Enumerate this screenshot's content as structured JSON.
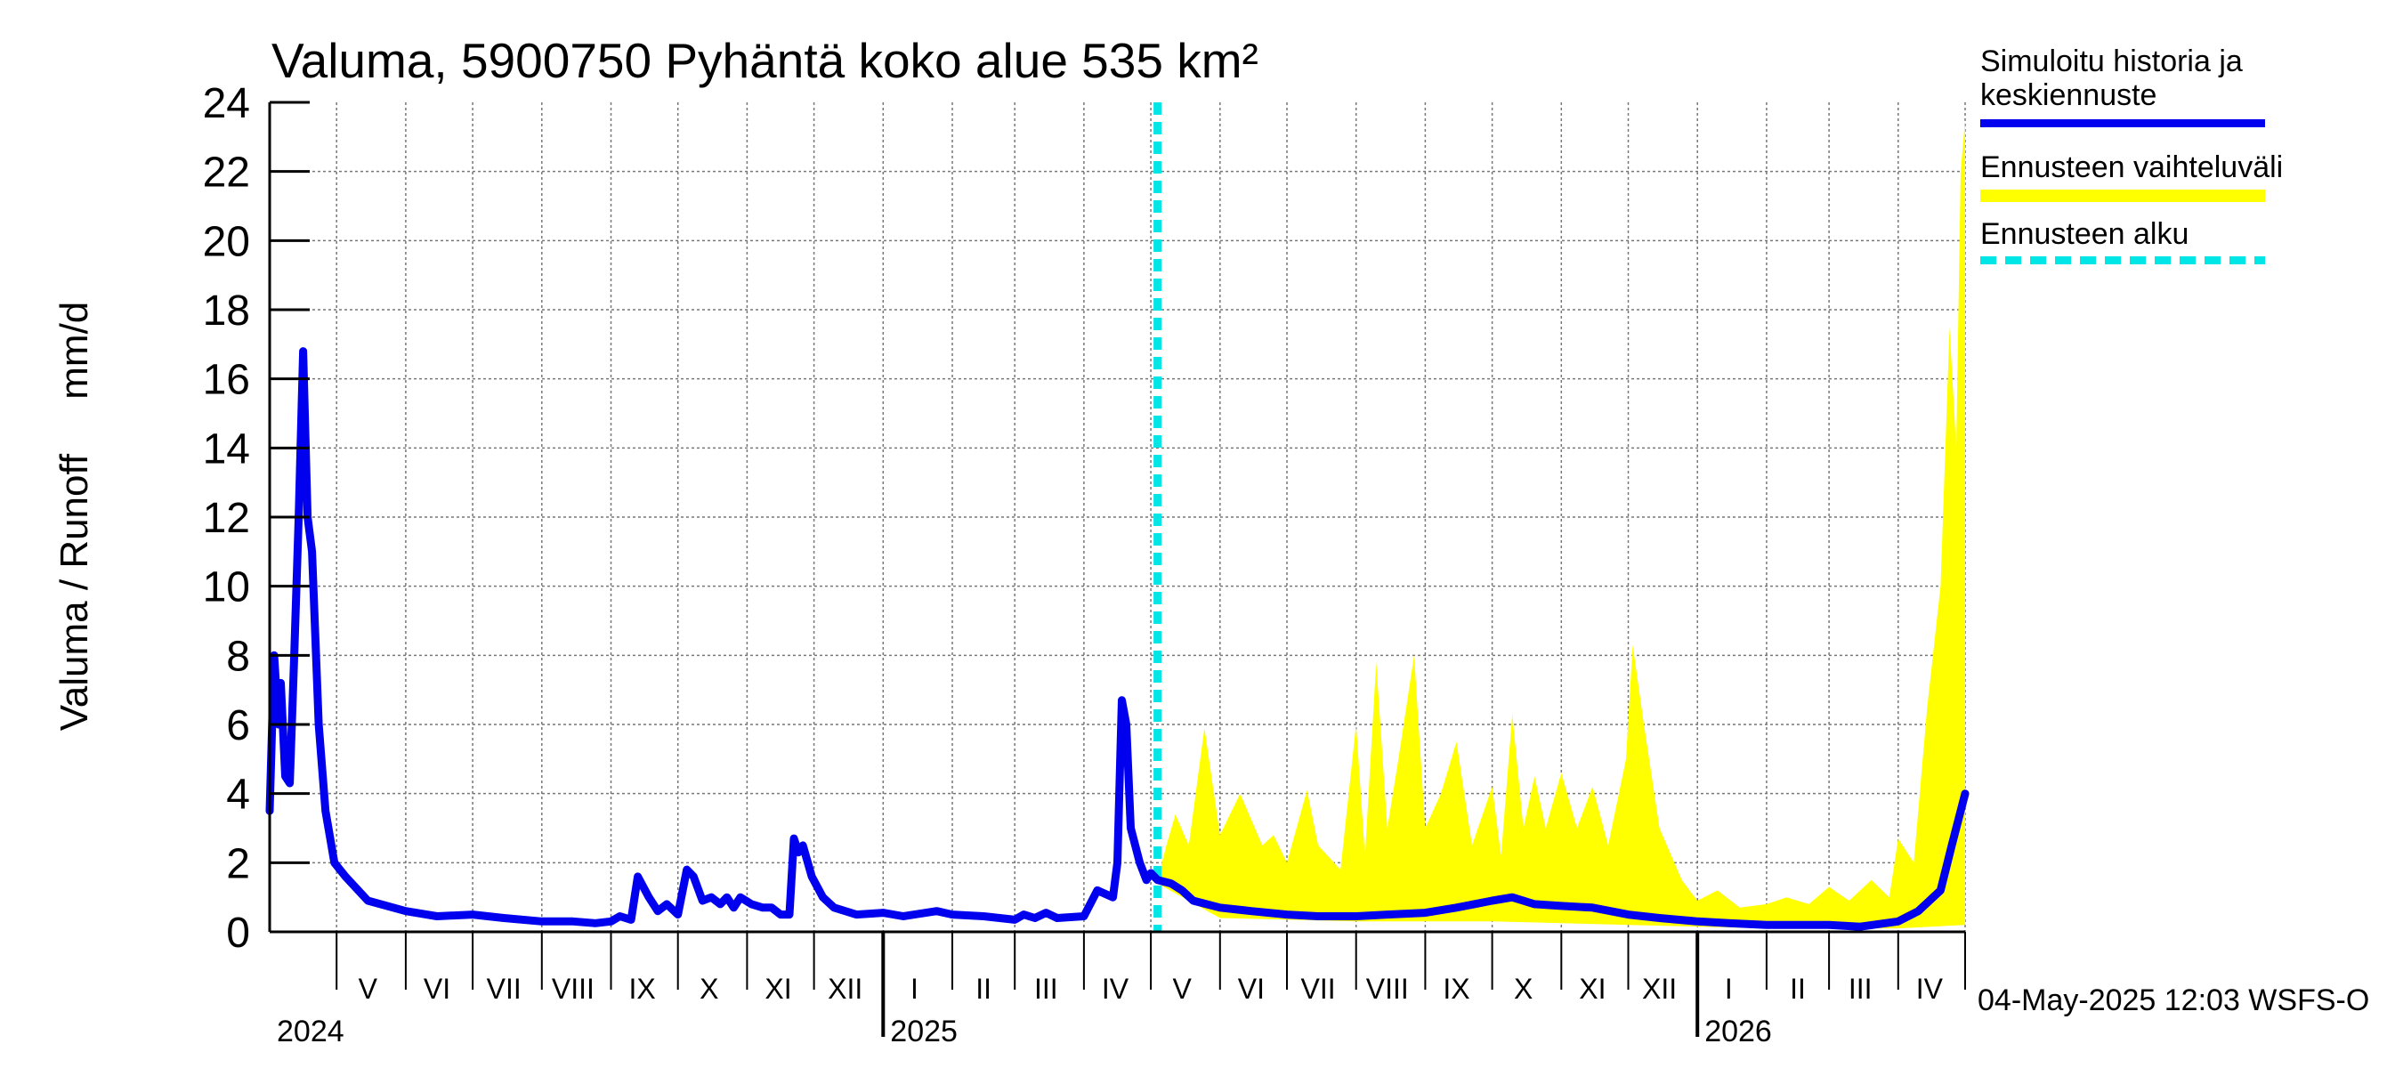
{
  "chart_data": {
    "type": "area",
    "title": "Valuma, 5900750 Pyhäntä koko alue 535 km²",
    "ylabel": "Valuma / Runoff     mm/d",
    "xlabel": "",
    "ylim": [
      0,
      24
    ],
    "yticks": [
      "0",
      "2",
      "4",
      "6",
      "8",
      "10",
      "12",
      "14",
      "16",
      "18",
      "20",
      "22",
      "24"
    ],
    "x_range": [
      "2024-04-01",
      "2026-05-01"
    ],
    "grid": true,
    "months": [
      {
        "label": "V",
        "date": "2024-05-15"
      },
      {
        "label": "VI",
        "date": "2024-06-15"
      },
      {
        "label": "VII",
        "date": "2024-07-15"
      },
      {
        "label": "VIII",
        "date": "2024-08-15"
      },
      {
        "label": "IX",
        "date": "2024-09-15"
      },
      {
        "label": "X",
        "date": "2024-10-15"
      },
      {
        "label": "XI",
        "date": "2024-11-15"
      },
      {
        "label": "XII",
        "date": "2024-12-15"
      },
      {
        "label": "I",
        "date": "2025-01-15"
      },
      {
        "label": "II",
        "date": "2025-02-15"
      },
      {
        "label": "III",
        "date": "2025-03-15"
      },
      {
        "label": "IV",
        "date": "2025-04-15"
      },
      {
        "label": "V",
        "date": "2025-05-15"
      },
      {
        "label": "VI",
        "date": "2025-06-15"
      },
      {
        "label": "VII",
        "date": "2025-07-15"
      },
      {
        "label": "VIII",
        "date": "2025-08-15"
      },
      {
        "label": "IX",
        "date": "2025-09-15"
      },
      {
        "label": "X",
        "date": "2025-10-15"
      },
      {
        "label": "XI",
        "date": "2025-11-15"
      },
      {
        "label": "XII",
        "date": "2025-12-15"
      },
      {
        "label": "I",
        "date": "2026-01-15"
      },
      {
        "label": "II",
        "date": "2026-02-15"
      },
      {
        "label": "III",
        "date": "2026-03-15"
      },
      {
        "label": "IV",
        "date": "2026-04-15"
      }
    ],
    "years": [
      {
        "label": "2024",
        "date": "2024-04-01"
      },
      {
        "label": "2025",
        "date": "2025-01-01"
      },
      {
        "label": "2026",
        "date": "2026-01-01"
      }
    ],
    "forecast_start": "2025-05-04",
    "series": [
      {
        "name": "Simuloitu historia ja keskiennuste",
        "color": "#0000ee",
        "points": [
          [
            "2024-04-01",
            3.5
          ],
          [
            "2024-04-03",
            8.0
          ],
          [
            "2024-04-05",
            6.0
          ],
          [
            "2024-04-06",
            7.2
          ],
          [
            "2024-04-08",
            4.5
          ],
          [
            "2024-04-10",
            4.3
          ],
          [
            "2024-04-12",
            8.0
          ],
          [
            "2024-04-14",
            12.0
          ],
          [
            "2024-04-16",
            16.8
          ],
          [
            "2024-04-18",
            12.0
          ],
          [
            "2024-04-20",
            11.0
          ],
          [
            "2024-04-23",
            6.0
          ],
          [
            "2024-04-26",
            3.5
          ],
          [
            "2024-04-30",
            2.0
          ],
          [
            "2024-05-05",
            1.6
          ],
          [
            "2024-05-15",
            0.9
          ],
          [
            "2024-06-01",
            0.6
          ],
          [
            "2024-06-15",
            0.45
          ],
          [
            "2024-07-01",
            0.5
          ],
          [
            "2024-07-15",
            0.4
          ],
          [
            "2024-08-01",
            0.3
          ],
          [
            "2024-08-15",
            0.3
          ],
          [
            "2024-08-25",
            0.25
          ],
          [
            "2024-09-01",
            0.3
          ],
          [
            "2024-09-05",
            0.45
          ],
          [
            "2024-09-10",
            0.35
          ],
          [
            "2024-09-13",
            1.6
          ],
          [
            "2024-09-18",
            1.0
          ],
          [
            "2024-09-22",
            0.6
          ],
          [
            "2024-09-26",
            0.8
          ],
          [
            "2024-10-01",
            0.5
          ],
          [
            "2024-10-05",
            1.8
          ],
          [
            "2024-10-08",
            1.6
          ],
          [
            "2024-10-12",
            0.9
          ],
          [
            "2024-10-16",
            1.0
          ],
          [
            "2024-10-20",
            0.8
          ],
          [
            "2024-10-23",
            1.0
          ],
          [
            "2024-10-26",
            0.7
          ],
          [
            "2024-10-29",
            1.0
          ],
          [
            "2024-11-03",
            0.8
          ],
          [
            "2024-11-08",
            0.7
          ],
          [
            "2024-11-12",
            0.7
          ],
          [
            "2024-11-16",
            0.5
          ],
          [
            "2024-11-20",
            0.5
          ],
          [
            "2024-11-22",
            2.7
          ],
          [
            "2024-11-24",
            2.3
          ],
          [
            "2024-11-26",
            2.5
          ],
          [
            "2024-11-30",
            1.6
          ],
          [
            "2024-12-05",
            1.0
          ],
          [
            "2024-12-10",
            0.7
          ],
          [
            "2024-12-20",
            0.5
          ],
          [
            "2025-01-01",
            0.55
          ],
          [
            "2025-01-10",
            0.45
          ],
          [
            "2025-01-15",
            0.5
          ],
          [
            "2025-01-25",
            0.6
          ],
          [
            "2025-02-01",
            0.5
          ],
          [
            "2025-02-15",
            0.45
          ],
          [
            "2025-03-01",
            0.35
          ],
          [
            "2025-03-05",
            0.5
          ],
          [
            "2025-03-10",
            0.4
          ],
          [
            "2025-03-15",
            0.55
          ],
          [
            "2025-03-20",
            0.4
          ],
          [
            "2025-04-01",
            0.45
          ],
          [
            "2025-04-07",
            1.2
          ],
          [
            "2025-04-14",
            1.0
          ],
          [
            "2025-04-16",
            2.0
          ],
          [
            "2025-04-18",
            6.7
          ],
          [
            "2025-04-20",
            6.0
          ],
          [
            "2025-04-22",
            3.0
          ],
          [
            "2025-04-26",
            2.0
          ],
          [
            "2025-04-29",
            1.5
          ],
          [
            "2025-05-01",
            1.7
          ],
          [
            "2025-05-04",
            1.5
          ],
          [
            "2025-05-10",
            1.4
          ],
          [
            "2025-05-15",
            1.2
          ],
          [
            "2025-05-20",
            0.9
          ],
          [
            "2025-06-01",
            0.7
          ],
          [
            "2025-06-15",
            0.6
          ],
          [
            "2025-07-01",
            0.5
          ],
          [
            "2025-07-15",
            0.45
          ],
          [
            "2025-08-01",
            0.45
          ],
          [
            "2025-08-15",
            0.5
          ],
          [
            "2025-09-01",
            0.55
          ],
          [
            "2025-09-15",
            0.7
          ],
          [
            "2025-10-01",
            0.9
          ],
          [
            "2025-10-10",
            1.0
          ],
          [
            "2025-10-20",
            0.8
          ],
          [
            "2025-11-01",
            0.75
          ],
          [
            "2025-11-15",
            0.7
          ],
          [
            "2025-12-01",
            0.5
          ],
          [
            "2025-12-15",
            0.4
          ],
          [
            "2026-01-01",
            0.3
          ],
          [
            "2026-01-15",
            0.25
          ],
          [
            "2026-02-01",
            0.2
          ],
          [
            "2026-02-15",
            0.2
          ],
          [
            "2026-03-01",
            0.2
          ],
          [
            "2026-03-15",
            0.15
          ],
          [
            "2026-04-01",
            0.3
          ],
          [
            "2026-04-10",
            0.6
          ],
          [
            "2026-04-20",
            1.2
          ],
          [
            "2026-04-25",
            2.5
          ],
          [
            "2026-04-29",
            3.5
          ],
          [
            "2026-05-01",
            4.0
          ]
        ]
      },
      {
        "name": "Ennusteen vaihteluväli",
        "color": "#ffff00",
        "upper": [
          [
            "2025-05-04",
            1.5
          ],
          [
            "2025-05-08",
            2.5
          ],
          [
            "2025-05-12",
            3.4
          ],
          [
            "2025-05-18",
            2.5
          ],
          [
            "2025-05-25",
            5.9
          ],
          [
            "2025-06-01",
            2.8
          ],
          [
            "2025-06-10",
            4.0
          ],
          [
            "2025-06-20",
            2.5
          ],
          [
            "2025-06-25",
            2.8
          ],
          [
            "2025-07-01",
            2.0
          ],
          [
            "2025-07-10",
            4.1
          ],
          [
            "2025-07-15",
            2.5
          ],
          [
            "2025-07-25",
            1.8
          ],
          [
            "2025-08-01",
            6.0
          ],
          [
            "2025-08-05",
            2.2
          ],
          [
            "2025-08-10",
            7.8
          ],
          [
            "2025-08-15",
            3.0
          ],
          [
            "2025-08-20",
            5.0
          ],
          [
            "2025-08-27",
            8.0
          ],
          [
            "2025-09-01",
            3.0
          ],
          [
            "2025-09-08",
            4.0
          ],
          [
            "2025-09-15",
            5.5
          ],
          [
            "2025-09-22",
            2.5
          ],
          [
            "2025-10-01",
            4.2
          ],
          [
            "2025-10-05",
            2.2
          ],
          [
            "2025-10-10",
            6.3
          ],
          [
            "2025-10-15",
            3.0
          ],
          [
            "2025-10-20",
            4.5
          ],
          [
            "2025-10-25",
            3.0
          ],
          [
            "2025-11-01",
            4.6
          ],
          [
            "2025-11-08",
            3.0
          ],
          [
            "2025-11-15",
            4.2
          ],
          [
            "2025-11-22",
            2.5
          ],
          [
            "2025-11-30",
            5.0
          ],
          [
            "2025-12-03",
            8.3
          ],
          [
            "2025-12-08",
            6.0
          ],
          [
            "2025-12-15",
            3.0
          ],
          [
            "2025-12-25",
            1.5
          ],
          [
            "2026-01-01",
            0.9
          ],
          [
            "2026-01-10",
            1.2
          ],
          [
            "2026-01-20",
            0.7
          ],
          [
            "2026-02-01",
            0.8
          ],
          [
            "2026-02-10",
            1.0
          ],
          [
            "2026-02-20",
            0.8
          ],
          [
            "2026-03-01",
            1.3
          ],
          [
            "2026-03-10",
            0.9
          ],
          [
            "2026-03-20",
            1.5
          ],
          [
            "2026-03-28",
            1.0
          ],
          [
            "2026-04-01",
            2.7
          ],
          [
            "2026-04-08",
            2.0
          ],
          [
            "2026-04-14",
            6.5
          ],
          [
            "2026-04-20",
            10.0
          ],
          [
            "2026-04-24",
            17.5
          ],
          [
            "2026-04-27",
            14.0
          ],
          [
            "2026-04-29",
            22.0
          ],
          [
            "2026-05-01",
            23.5
          ]
        ],
        "lower": [
          [
            "2025-05-04",
            1.4
          ],
          [
            "2025-06-01",
            0.4
          ],
          [
            "2025-08-01",
            0.3
          ],
          [
            "2025-10-01",
            0.3
          ],
          [
            "2025-12-01",
            0.2
          ],
          [
            "2026-02-01",
            0.1
          ],
          [
            "2026-04-01",
            0.1
          ],
          [
            "2026-05-01",
            0.2
          ]
        ]
      },
      {
        "name": "Ennusteen alku",
        "color": "#00e5e5"
      }
    ]
  },
  "legend": {
    "items": [
      {
        "label": "Simuloitu historia ja keskiennuste",
        "color": "#0000ee",
        "style": "solid"
      },
      {
        "label": "Ennusteen vaihteluväli",
        "color": "#ffff00",
        "style": "solid"
      },
      {
        "label": "Ennusteen alku",
        "color": "#00e5e5",
        "style": "dashed"
      }
    ]
  },
  "footer": "04-May-2025 12:03 WSFS-O"
}
